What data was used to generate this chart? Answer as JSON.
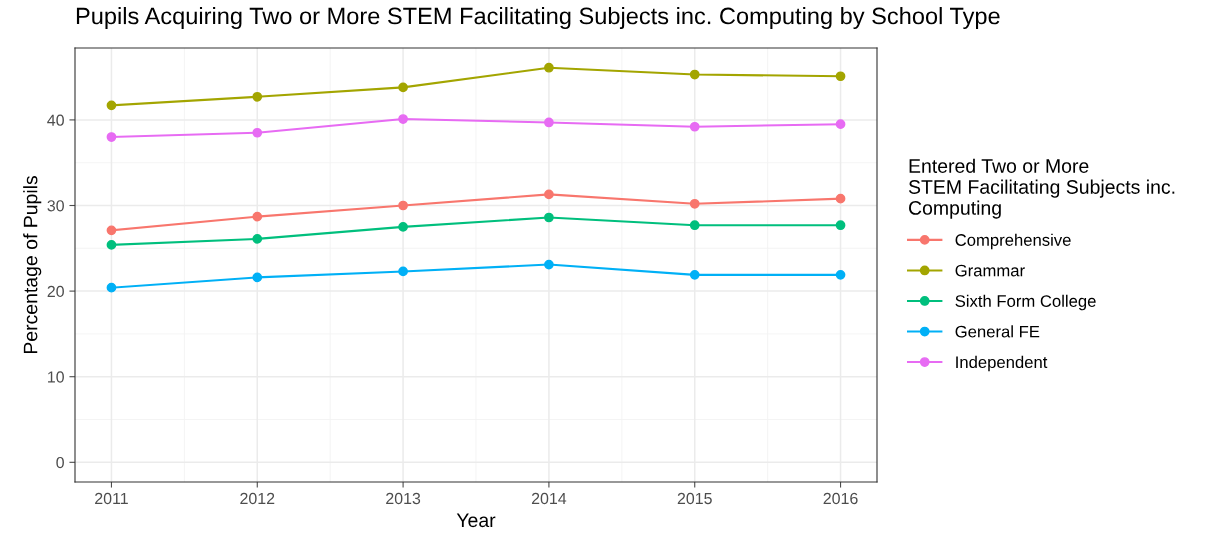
{
  "chart_data": {
    "type": "line",
    "title": "Pupils Acquiring Two or More STEM Facilitating Subjects inc. Computing by School Type",
    "xlabel": "Year",
    "ylabel": "Percentage of Pupils",
    "legend_title": "Entered Two or More\nSTEM Facilitating Subjects inc.\nComputing",
    "x": [
      2011,
      2012,
      2013,
      2014,
      2015,
      2016
    ],
    "series": [
      {
        "name": "Comprehensive",
        "color": "#f8766d",
        "values": [
          27.1,
          28.7,
          30.0,
          31.3,
          30.2,
          30.8
        ]
      },
      {
        "name": "Grammar",
        "color": "#a3a500",
        "values": [
          41.7,
          42.7,
          43.8,
          46.1,
          45.3,
          45.1
        ]
      },
      {
        "name": "Sixth Form College",
        "color": "#00bf7d",
        "values": [
          25.4,
          26.1,
          27.5,
          28.6,
          27.7,
          27.7
        ]
      },
      {
        "name": "General FE",
        "color": "#00b0f6",
        "values": [
          20.4,
          21.6,
          22.3,
          23.1,
          21.9,
          21.9
        ]
      },
      {
        "name": "Independent",
        "color": "#e76bf3",
        "values": [
          38.0,
          38.5,
          40.1,
          39.7,
          39.2,
          39.5
        ]
      }
    ],
    "xlim": [
      2010.75,
      2016.25
    ],
    "xticks": [
      2011,
      2012,
      2013,
      2014,
      2015,
      2016
    ],
    "ylim": [
      -2.3,
      48.4
    ],
    "yticks": [
      0,
      10,
      20,
      30,
      40
    ],
    "grid": true,
    "legend": "right",
    "marker": "circle",
    "line_style": "solid"
  }
}
